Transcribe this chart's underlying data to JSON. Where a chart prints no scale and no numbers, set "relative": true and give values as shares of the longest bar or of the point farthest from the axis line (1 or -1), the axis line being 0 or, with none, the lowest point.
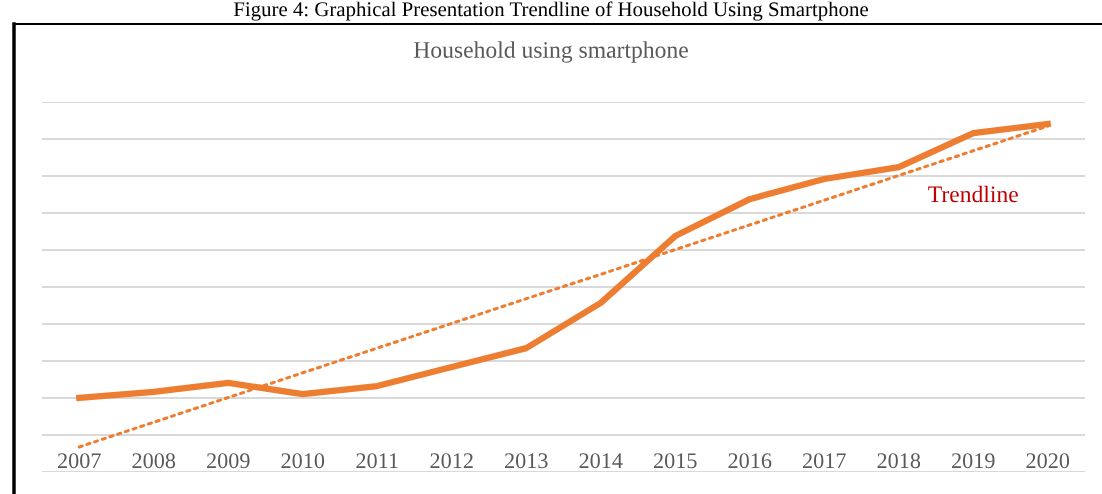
{
  "chart_data": {
    "type": "line",
    "title": "Household using smartphone",
    "subtitle": "Figure 4: Graphical Presentation Trendline of Household Using Smartphone",
    "categories": [
      "2007",
      "2008",
      "2009",
      "2010",
      "2011",
      "2012",
      "2013",
      "2014",
      "2015",
      "2016",
      "2017",
      "2018",
      "2019",
      "2020"
    ],
    "relative": true,
    "series": [
      {
        "color": "#ed7d31",
        "line_style": "solid",
        "values": [
          0.213,
          0.23,
          0.256,
          0.224,
          0.247,
          0.302,
          0.356,
          0.486,
          0.678,
          0.784,
          0.842,
          0.876,
          0.974,
          1.0
        ]
      },
      {
        "color": "#ed7d31",
        "line_style": "dotted",
        "values": [
          0.072,
          0.143,
          0.214,
          0.285,
          0.356,
          0.427,
          0.498,
          0.568,
          0.639,
          0.71,
          0.781,
          0.852,
          0.923,
          0.994
        ]
      }
    ],
    "annotations": [
      "Trendline"
    ],
    "grid": "y",
    "tick_labels": "x",
    "marker": "none"
  }
}
